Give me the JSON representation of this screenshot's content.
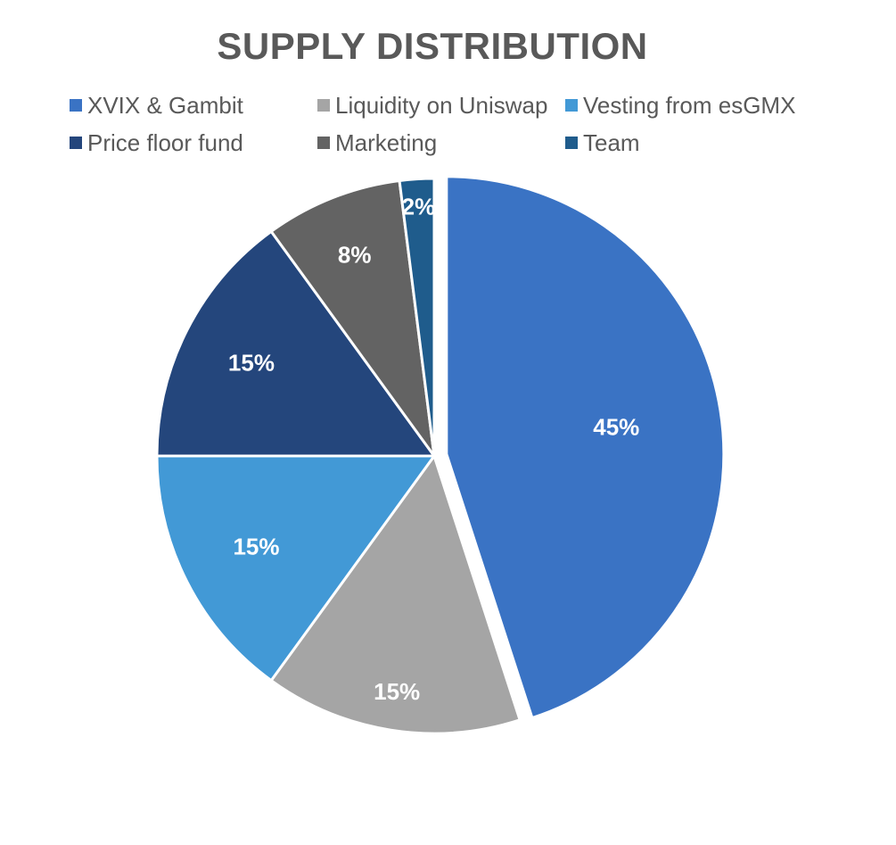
{
  "chart_data": {
    "type": "pie",
    "title": "SUPPLY DISTRIBUTION",
    "legend_position": "top",
    "categories": [
      "XVIX & Gambit",
      "Liquidity on Uniswap",
      "Vesting from esGMX",
      "Price floor fund",
      "Marketing",
      "Team"
    ],
    "values": [
      45,
      15,
      15,
      15,
      8,
      2
    ],
    "data_labels": [
      "45%",
      "15%",
      "15%",
      "15%",
      "8%",
      "2%"
    ],
    "colors": [
      "#3a73c4",
      "#a5a5a5",
      "#4299d6",
      "#24467c",
      "#636363",
      "#1f5c8c"
    ],
    "exploded": [
      "XVIX & Gambit"
    ]
  }
}
